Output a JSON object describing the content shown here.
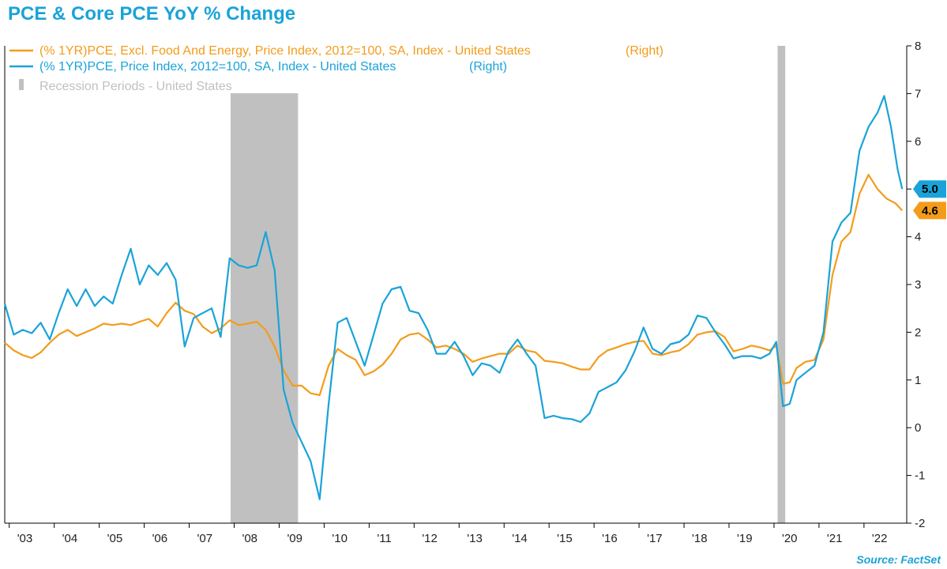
{
  "title": "PCE & Core PCE YoY % Change",
  "source": "Source: FactSet",
  "chart_data": {
    "type": "line",
    "x_range": [
      2002.9,
      2022.95
    ],
    "ylim": [
      -2,
      8
    ],
    "y_ticks": [
      -2,
      -1,
      0,
      1,
      2,
      3,
      4,
      5,
      6,
      7,
      8
    ],
    "y_axis_side": "right",
    "x_tick_labels": [
      "'03",
      "'04",
      "'05",
      "'06",
      "'07",
      "'08",
      "'09",
      "'10",
      "'11",
      "'12",
      "'13",
      "'14",
      "'15",
      "'16",
      "'17",
      "'18",
      "'19",
      "'20",
      "'21",
      "'22"
    ],
    "legend_placement": "top-left",
    "grid": false,
    "recessions": [
      {
        "label": "Recession Periods - United States",
        "start": 2007.92,
        "end": 2009.42
      },
      {
        "start": 2020.08,
        "end": 2020.25
      }
    ],
    "recession_legend": "Recession Periods - United States",
    "series": [
      {
        "name": "(% 1YR)PCE, Excl. Food And Energy, Price Index, 2012=100, SA, Index - United States",
        "axis_note": "(Right)",
        "color": "#f39c1b",
        "last_value_label": "4.6",
        "points": [
          [
            2002.9,
            1.78
          ],
          [
            2003.1,
            1.62
          ],
          [
            2003.3,
            1.52
          ],
          [
            2003.5,
            1.46
          ],
          [
            2003.7,
            1.58
          ],
          [
            2003.9,
            1.78
          ],
          [
            2004.1,
            1.95
          ],
          [
            2004.3,
            2.05
          ],
          [
            2004.5,
            1.92
          ],
          [
            2004.7,
            2.0
          ],
          [
            2004.9,
            2.08
          ],
          [
            2005.1,
            2.18
          ],
          [
            2005.3,
            2.15
          ],
          [
            2005.5,
            2.18
          ],
          [
            2005.7,
            2.15
          ],
          [
            2005.9,
            2.22
          ],
          [
            2006.1,
            2.28
          ],
          [
            2006.3,
            2.12
          ],
          [
            2006.5,
            2.4
          ],
          [
            2006.7,
            2.62
          ],
          [
            2006.9,
            2.45
          ],
          [
            2007.1,
            2.38
          ],
          [
            2007.3,
            2.12
          ],
          [
            2007.5,
            1.98
          ],
          [
            2007.7,
            2.08
          ],
          [
            2007.9,
            2.25
          ],
          [
            2008.1,
            2.15
          ],
          [
            2008.3,
            2.18
          ],
          [
            2008.5,
            2.22
          ],
          [
            2008.7,
            2.05
          ],
          [
            2008.9,
            1.7
          ],
          [
            2009.1,
            1.2
          ],
          [
            2009.3,
            0.88
          ],
          [
            2009.5,
            0.88
          ],
          [
            2009.7,
            0.72
          ],
          [
            2009.9,
            0.68
          ],
          [
            2010.1,
            1.3
          ],
          [
            2010.3,
            1.65
          ],
          [
            2010.5,
            1.52
          ],
          [
            2010.7,
            1.42
          ],
          [
            2010.9,
            1.1
          ],
          [
            2011.1,
            1.18
          ],
          [
            2011.3,
            1.32
          ],
          [
            2011.5,
            1.55
          ],
          [
            2011.7,
            1.85
          ],
          [
            2011.9,
            1.95
          ],
          [
            2012.1,
            1.98
          ],
          [
            2012.3,
            1.85
          ],
          [
            2012.5,
            1.68
          ],
          [
            2012.7,
            1.72
          ],
          [
            2012.9,
            1.65
          ],
          [
            2013.1,
            1.55
          ],
          [
            2013.3,
            1.38
          ],
          [
            2013.5,
            1.45
          ],
          [
            2013.7,
            1.5
          ],
          [
            2013.9,
            1.55
          ],
          [
            2014.1,
            1.55
          ],
          [
            2014.3,
            1.72
          ],
          [
            2014.5,
            1.62
          ],
          [
            2014.7,
            1.58
          ],
          [
            2014.9,
            1.4
          ],
          [
            2015.1,
            1.38
          ],
          [
            2015.3,
            1.35
          ],
          [
            2015.5,
            1.28
          ],
          [
            2015.7,
            1.22
          ],
          [
            2015.9,
            1.22
          ],
          [
            2016.1,
            1.48
          ],
          [
            2016.3,
            1.62
          ],
          [
            2016.5,
            1.68
          ],
          [
            2016.7,
            1.75
          ],
          [
            2016.9,
            1.8
          ],
          [
            2017.1,
            1.82
          ],
          [
            2017.3,
            1.55
          ],
          [
            2017.5,
            1.52
          ],
          [
            2017.7,
            1.58
          ],
          [
            2017.9,
            1.62
          ],
          [
            2018.1,
            1.75
          ],
          [
            2018.3,
            1.95
          ],
          [
            2018.5,
            2.0
          ],
          [
            2018.7,
            2.02
          ],
          [
            2018.9,
            1.9
          ],
          [
            2019.1,
            1.6
          ],
          [
            2019.3,
            1.65
          ],
          [
            2019.5,
            1.72
          ],
          [
            2019.7,
            1.68
          ],
          [
            2019.9,
            1.62
          ],
          [
            2020.05,
            1.72
          ],
          [
            2020.2,
            0.92
          ],
          [
            2020.35,
            0.95
          ],
          [
            2020.5,
            1.25
          ],
          [
            2020.7,
            1.38
          ],
          [
            2020.9,
            1.42
          ],
          [
            2021.1,
            1.85
          ],
          [
            2021.3,
            3.2
          ],
          [
            2021.5,
            3.9
          ],
          [
            2021.7,
            4.1
          ],
          [
            2021.9,
            4.9
          ],
          [
            2022.1,
            5.3
          ],
          [
            2022.3,
            5.0
          ],
          [
            2022.5,
            4.8
          ],
          [
            2022.7,
            4.7
          ],
          [
            2022.85,
            4.55
          ]
        ]
      },
      {
        "name": "(% 1YR)PCE, Price Index, 2012=100, SA, Index - United States",
        "axis_note": "(Right)",
        "color": "#1aa3d8",
        "last_value_label": "5.0",
        "points": [
          [
            2002.9,
            2.6
          ],
          [
            2003.1,
            1.95
          ],
          [
            2003.3,
            2.05
          ],
          [
            2003.5,
            1.98
          ],
          [
            2003.7,
            2.2
          ],
          [
            2003.9,
            1.85
          ],
          [
            2004.1,
            2.4
          ],
          [
            2004.3,
            2.9
          ],
          [
            2004.5,
            2.55
          ],
          [
            2004.7,
            2.9
          ],
          [
            2004.9,
            2.55
          ],
          [
            2005.1,
            2.75
          ],
          [
            2005.3,
            2.6
          ],
          [
            2005.5,
            3.2
          ],
          [
            2005.7,
            3.75
          ],
          [
            2005.9,
            3.0
          ],
          [
            2006.1,
            3.4
          ],
          [
            2006.3,
            3.2
          ],
          [
            2006.5,
            3.45
          ],
          [
            2006.7,
            3.1
          ],
          [
            2006.9,
            1.7
          ],
          [
            2007.1,
            2.3
          ],
          [
            2007.3,
            2.4
          ],
          [
            2007.5,
            2.5
          ],
          [
            2007.7,
            1.9
          ],
          [
            2007.9,
            3.55
          ],
          [
            2008.1,
            3.4
          ],
          [
            2008.3,
            3.35
          ],
          [
            2008.5,
            3.4
          ],
          [
            2008.7,
            4.1
          ],
          [
            2008.9,
            3.3
          ],
          [
            2009.1,
            0.8
          ],
          [
            2009.3,
            0.1
          ],
          [
            2009.5,
            -0.3
          ],
          [
            2009.7,
            -0.7
          ],
          [
            2009.9,
            -1.5
          ],
          [
            2010.1,
            0.5
          ],
          [
            2010.3,
            2.2
          ],
          [
            2010.5,
            2.3
          ],
          [
            2010.7,
            1.8
          ],
          [
            2010.9,
            1.3
          ],
          [
            2011.1,
            1.95
          ],
          [
            2011.3,
            2.6
          ],
          [
            2011.5,
            2.9
          ],
          [
            2011.7,
            2.95
          ],
          [
            2011.9,
            2.45
          ],
          [
            2012.1,
            2.4
          ],
          [
            2012.3,
            2.05
          ],
          [
            2012.5,
            1.55
          ],
          [
            2012.7,
            1.55
          ],
          [
            2012.9,
            1.8
          ],
          [
            2013.1,
            1.5
          ],
          [
            2013.3,
            1.1
          ],
          [
            2013.5,
            1.35
          ],
          [
            2013.7,
            1.3
          ],
          [
            2013.9,
            1.15
          ],
          [
            2014.1,
            1.6
          ],
          [
            2014.3,
            1.85
          ],
          [
            2014.5,
            1.55
          ],
          [
            2014.7,
            1.3
          ],
          [
            2014.9,
            0.2
          ],
          [
            2015.1,
            0.25
          ],
          [
            2015.3,
            0.2
          ],
          [
            2015.5,
            0.18
          ],
          [
            2015.7,
            0.12
          ],
          [
            2015.9,
            0.3
          ],
          [
            2016.1,
            0.75
          ],
          [
            2016.3,
            0.85
          ],
          [
            2016.5,
            0.95
          ],
          [
            2016.7,
            1.2
          ],
          [
            2016.9,
            1.6
          ],
          [
            2017.1,
            2.1
          ],
          [
            2017.3,
            1.65
          ],
          [
            2017.5,
            1.55
          ],
          [
            2017.7,
            1.75
          ],
          [
            2017.9,
            1.8
          ],
          [
            2018.1,
            1.95
          ],
          [
            2018.3,
            2.35
          ],
          [
            2018.5,
            2.3
          ],
          [
            2018.7,
            2.0
          ],
          [
            2018.9,
            1.75
          ],
          [
            2019.1,
            1.45
          ],
          [
            2019.3,
            1.5
          ],
          [
            2019.5,
            1.5
          ],
          [
            2019.7,
            1.45
          ],
          [
            2019.9,
            1.55
          ],
          [
            2020.05,
            1.8
          ],
          [
            2020.2,
            0.45
          ],
          [
            2020.35,
            0.5
          ],
          [
            2020.5,
            1.0
          ],
          [
            2020.7,
            1.15
          ],
          [
            2020.9,
            1.3
          ],
          [
            2021.1,
            2.0
          ],
          [
            2021.3,
            3.9
          ],
          [
            2021.5,
            4.3
          ],
          [
            2021.7,
            4.5
          ],
          [
            2021.9,
            5.8
          ],
          [
            2022.1,
            6.3
          ],
          [
            2022.3,
            6.6
          ],
          [
            2022.45,
            6.95
          ],
          [
            2022.6,
            6.3
          ],
          [
            2022.75,
            5.4
          ],
          [
            2022.85,
            5.0
          ]
        ]
      }
    ]
  }
}
